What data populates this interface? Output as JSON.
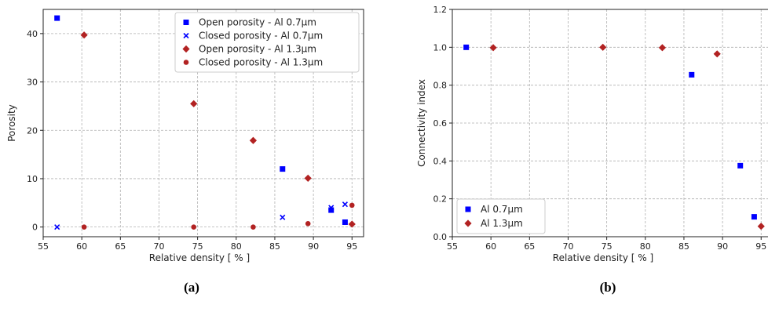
{
  "chart_data": [
    {
      "type": "scatter",
      "caption": "(a)",
      "xlabel": "Relative density [ % ]",
      "ylabel": "Porosity",
      "xlim": [
        55,
        96.5
      ],
      "ylim": [
        -2,
        45
      ],
      "xticks": [
        55,
        60,
        65,
        70,
        75,
        80,
        85,
        90,
        95
      ],
      "yticks": [
        0,
        10,
        20,
        30,
        40
      ],
      "grid": true,
      "legend": "top-right",
      "series": [
        {
          "name": "Open porosity - Al 0.7µm",
          "marker": "square",
          "color": "#0000ff",
          "x": [
            56.8,
            86.0,
            92.3,
            94.1
          ],
          "y": [
            43.2,
            12.0,
            3.5,
            1.0
          ]
        },
        {
          "name": "Closed porosity - Al 0.7µm",
          "marker": "x",
          "color": "#0000ff",
          "x": [
            56.8,
            86.0,
            92.3,
            94.1
          ],
          "y": [
            0.0,
            2.0,
            4.0,
            4.7
          ]
        },
        {
          "name": "Open porosity - Al 1.3µm",
          "marker": "diamond",
          "color": "#b22222",
          "x": [
            60.3,
            74.5,
            82.2,
            89.3,
            95.0
          ],
          "y": [
            39.7,
            25.5,
            17.9,
            10.1,
            0.6
          ]
        },
        {
          "name": "Closed porosity - Al 1.3µm",
          "marker": "circle",
          "color": "#b22222",
          "x": [
            60.3,
            74.5,
            82.2,
            89.3,
            95.0
          ],
          "y": [
            0.0,
            0.0,
            0.0,
            0.7,
            4.5
          ]
        }
      ]
    },
    {
      "type": "scatter",
      "caption": "(b)",
      "xlabel": "Relative density [ % ]",
      "ylabel": "Connectivity index",
      "xlim": [
        55,
        96.5
      ],
      "ylim": [
        0,
        1.2
      ],
      "xticks": [
        55,
        60,
        65,
        70,
        75,
        80,
        85,
        90,
        95
      ],
      "yticks": [
        0.0,
        0.2,
        0.4,
        0.6,
        0.8,
        1.0,
        1.2
      ],
      "grid": true,
      "legend": "bottom-left",
      "series": [
        {
          "name": "Al 0.7µm",
          "marker": "square",
          "color": "#0000ff",
          "x": [
            56.8,
            86.0,
            92.3,
            94.1
          ],
          "y": [
            1.0,
            0.855,
            0.375,
            0.105
          ]
        },
        {
          "name": "Al 1.3µm",
          "marker": "diamond",
          "color": "#b22222",
          "x": [
            60.3,
            74.5,
            82.2,
            89.3,
            95.0
          ],
          "y": [
            0.998,
            1.0,
            0.998,
            0.965,
            0.055
          ]
        }
      ]
    }
  ]
}
